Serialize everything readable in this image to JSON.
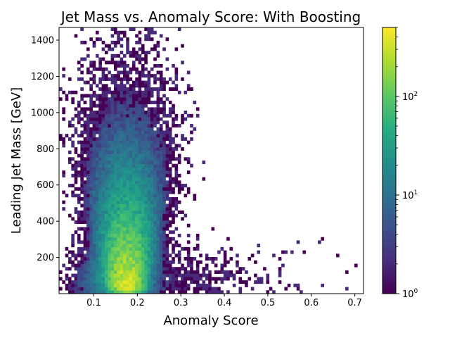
{
  "chart_data": {
    "type": "heatmap",
    "title": "Jet Mass vs. Anomaly Score: With Boosting",
    "xlabel": "Anomaly Score",
    "ylabel": "Leading Jet Mass [GeV]",
    "xlim": [
      0.02,
      0.72
    ],
    "ylim": [
      0,
      1470
    ],
    "x_ticks": [
      0.1,
      0.2,
      0.3,
      0.4,
      0.5,
      0.6,
      0.7
    ],
    "x_tick_labels": [
      "0.1",
      "0.2",
      "0.3",
      "0.4",
      "0.5",
      "0.6",
      "0.7"
    ],
    "y_ticks": [
      200,
      400,
      600,
      800,
      1000,
      1200,
      1400
    ],
    "y_tick_labels": [
      "200",
      "400",
      "600",
      "800",
      "1000",
      "1200",
      "1400"
    ],
    "grid": false,
    "colorbar": {
      "scale": "log",
      "colormap": "viridis",
      "range": [
        1,
        500
      ],
      "ticks": [
        1,
        10,
        100
      ],
      "tick_base": "10",
      "tick_exponents": [
        "0",
        "1",
        "2"
      ]
    },
    "density_model": {
      "peak_count": 480,
      "peak_x": 0.175,
      "peak_y": 75,
      "description": "2D histogram of events; highest density near score 0.17 and mass 50-150 GeV, with a long tail to high mass at score ~0.17 and a tail to high score at low mass"
    }
  }
}
